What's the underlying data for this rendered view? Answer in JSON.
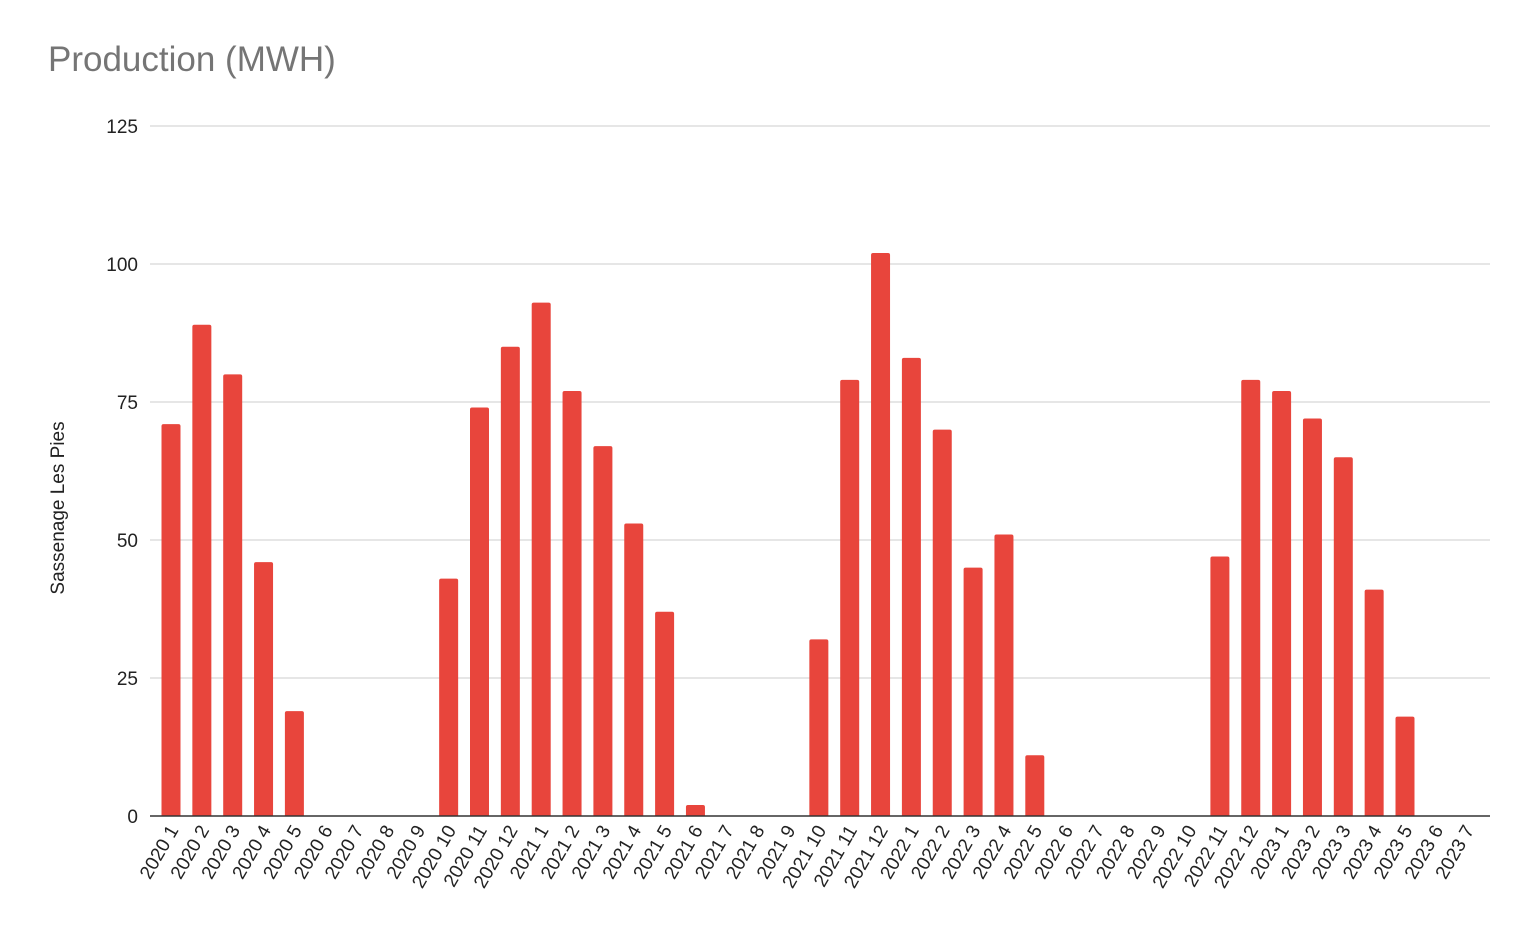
{
  "chart_data": {
    "type": "bar",
    "title": "Production (MWH)",
    "xlabel": "",
    "ylabel": "Sassenage Les Pies",
    "ylim": [
      0,
      125
    ],
    "yticks": [
      0,
      25,
      50,
      75,
      100,
      125
    ],
    "grid": true,
    "legend": "none",
    "bar_color": "#e8453c",
    "categories": [
      "2020 1",
      "2020 2",
      "2020 3",
      "2020 4",
      "2020 5",
      "2020 6",
      "2020 7",
      "2020 8",
      "2020 9",
      "2020 10",
      "2020 11",
      "2020 12",
      "2021 1",
      "2021 2",
      "2021 3",
      "2021 4",
      "2021 5",
      "2021 6",
      "2021 7",
      "2021 8",
      "2021 9",
      "2021 10",
      "2021 11",
      "2021 12",
      "2022 1",
      "2022 2",
      "2022 3",
      "2022 4",
      "2022 5",
      "2022 6",
      "2022 7",
      "2022 8",
      "2022 9",
      "2022 10",
      "2022 11",
      "2022 12",
      "2023 1",
      "2023 2",
      "2023 3",
      "2023 4",
      "2023 5",
      "2023 6",
      "2023 7"
    ],
    "values": [
      71,
      89,
      80,
      46,
      19,
      0,
      0,
      0,
      0,
      43,
      74,
      85,
      93,
      77,
      67,
      53,
      37,
      2,
      0,
      0,
      0,
      32,
      79,
      102,
      83,
      70,
      45,
      51,
      11,
      0,
      0,
      0,
      0,
      0,
      47,
      79,
      77,
      72,
      65,
      41,
      18,
      0,
      0
    ]
  }
}
